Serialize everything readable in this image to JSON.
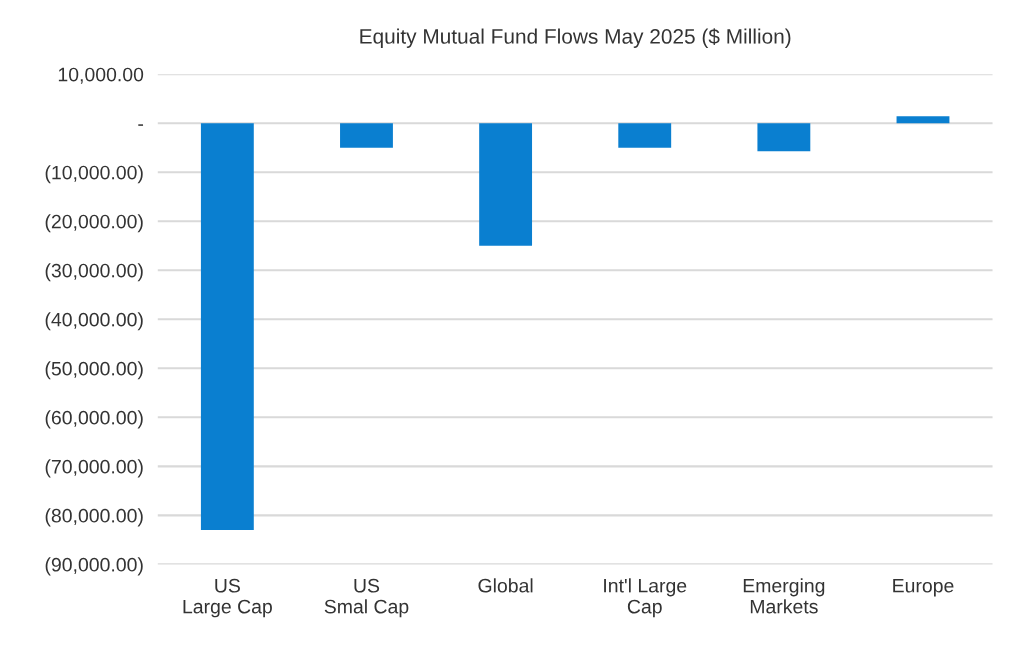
{
  "chart_data": {
    "type": "bar",
    "title": "Equity Mutual Fund Flows May 2025 ($ Million)",
    "categories": [
      "US\nLarge Cap",
      "US\nSmal Cap",
      "Global",
      "Int'l Large\nCap",
      "Emerging\nMarkets",
      "Europe"
    ],
    "values": [
      -83000,
      -5000,
      -25000,
      -5000,
      -5700,
      1400
    ],
    "color": "#0a7fd0",
    "ylim": [
      -90000,
      10000
    ],
    "yticks": [
      {
        "value": 10000,
        "label": "10,000.00"
      },
      {
        "value": 0,
        "label": "-"
      },
      {
        "value": -10000,
        "label": "(10,000.00)"
      },
      {
        "value": -20000,
        "label": "(20,000.00)"
      },
      {
        "value": -30000,
        "label": "(30,000.00)"
      },
      {
        "value": -40000,
        "label": "(40,000.00)"
      },
      {
        "value": -50000,
        "label": "(50,000.00)"
      },
      {
        "value": -60000,
        "label": "(60,000.00)"
      },
      {
        "value": -70000,
        "label": "(70,000.00)"
      },
      {
        "value": -80000,
        "label": "(80,000.00)"
      },
      {
        "value": -90000,
        "label": "(90,000.00)"
      }
    ],
    "grid": "y"
  }
}
